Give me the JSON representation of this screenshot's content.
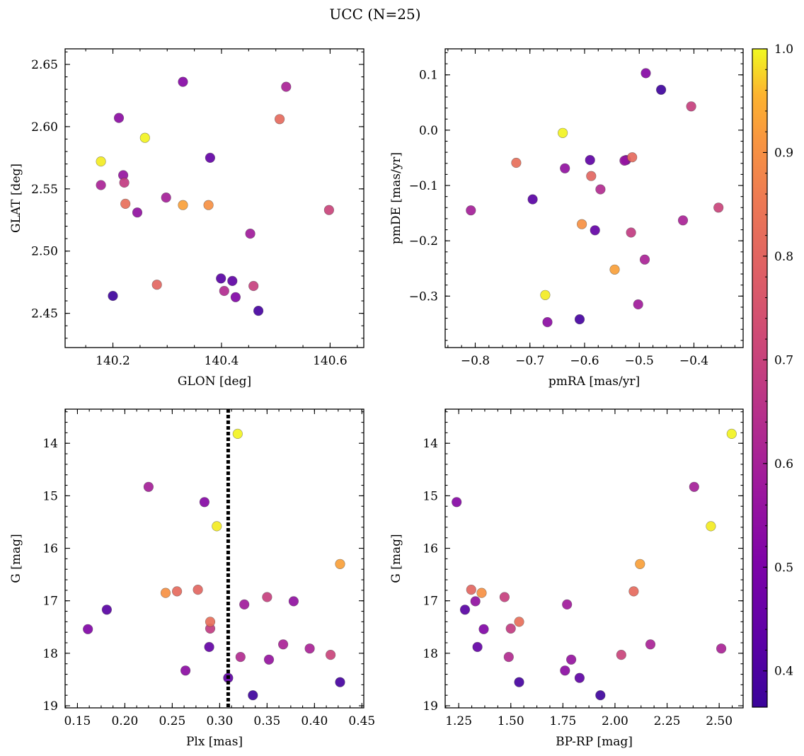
{
  "chart_data": {
    "title": "UCC (N=25)",
    "colorbar": {
      "colormap": "plasma",
      "range": [
        0.365,
        1.0
      ],
      "ticks": [
        0.4,
        0.5,
        0.6,
        0.7,
        0.8,
        0.9,
        1.0
      ],
      "tick_labels": [
        "0.4",
        "0.5",
        "0.6",
        "0.7",
        "0.8",
        "0.9",
        "1.0"
      ]
    },
    "vline_plx": 0.309,
    "stars": [
      {
        "glon": 140.178,
        "glat": 2.572,
        "pmra": -0.672,
        "pmde": -0.298,
        "plx": 0.297,
        "g": 15.58,
        "bprp": 2.46,
        "p": 0.98
      },
      {
        "glon": 140.259,
        "glat": 2.591,
        "pmra": -0.64,
        "pmde": -0.005,
        "plx": 0.319,
        "g": 13.82,
        "bprp": 2.56,
        "p": 0.99
      },
      {
        "glon": 140.329,
        "glat": 2.537,
        "pmra": -0.545,
        "pmde": -0.252,
        "plx": 0.427,
        "g": 16.3,
        "bprp": 2.12,
        "p": 0.85
      },
      {
        "glon": 140.376,
        "glat": 2.537,
        "pmra": -0.605,
        "pmde": -0.17,
        "plx": 0.243,
        "g": 16.85,
        "bprp": 1.36,
        "p": 0.82
      },
      {
        "glon": 140.507,
        "glat": 2.606,
        "pmra": -0.513,
        "pmde": -0.049,
        "plx": 0.255,
        "g": 16.82,
        "bprp": 2.09,
        "p": 0.74
      },
      {
        "glon": 140.223,
        "glat": 2.538,
        "pmra": -0.725,
        "pmde": -0.059,
        "plx": 0.29,
        "g": 17.4,
        "bprp": 1.54,
        "p": 0.75
      },
      {
        "glon": 140.281,
        "glat": 2.473,
        "pmra": -0.588,
        "pmde": -0.083,
        "plx": 0.277,
        "g": 16.79,
        "bprp": 1.31,
        "p": 0.73
      },
      {
        "glon": 140.598,
        "glat": 2.533,
        "pmra": -0.355,
        "pmde": -0.14,
        "plx": 0.417,
        "g": 18.03,
        "bprp": 2.03,
        "p": 0.65
      },
      {
        "glon": 140.459,
        "glat": 2.472,
        "pmra": -0.405,
        "pmde": 0.043,
        "plx": 0.35,
        "g": 16.93,
        "bprp": 1.47,
        "p": 0.64
      },
      {
        "glon": 140.221,
        "glat": 2.555,
        "pmra": -0.515,
        "pmde": -0.185,
        "plx": 0.29,
        "g": 17.53,
        "bprp": 1.5,
        "p": 0.63
      },
      {
        "glon": 140.405,
        "glat": 2.468,
        "pmra": -0.571,
        "pmde": -0.107,
        "plx": 0.322,
        "g": 18.07,
        "bprp": 1.49,
        "p": 0.59
      },
      {
        "glon": 140.178,
        "glat": 2.553,
        "pmra": -0.42,
        "pmde": -0.163,
        "plx": 0.395,
        "g": 17.91,
        "bprp": 2.51,
        "p": 0.57
      },
      {
        "glon": 140.519,
        "glat": 2.632,
        "pmra": -0.49,
        "pmde": -0.234,
        "plx": 0.367,
        "g": 17.83,
        "bprp": 2.17,
        "p": 0.57
      },
      {
        "glon": 140.298,
        "glat": 2.543,
        "pmra": -0.808,
        "pmde": -0.145,
        "plx": 0.225,
        "g": 14.83,
        "bprp": 2.38,
        "p": 0.56
      },
      {
        "glon": 140.453,
        "glat": 2.514,
        "pmra": -0.502,
        "pmde": -0.315,
        "plx": 0.326,
        "g": 17.07,
        "bprp": 1.77,
        "p": 0.55
      },
      {
        "glon": 140.219,
        "glat": 2.561,
        "pmra": -0.527,
        "pmde": -0.055,
        "plx": 0.352,
        "g": 18.12,
        "bprp": 1.79,
        "p": 0.53
      },
      {
        "glon": 140.245,
        "glat": 2.531,
        "pmra": -0.636,
        "pmde": -0.069,
        "plx": 0.378,
        "g": 17.01,
        "bprp": 1.33,
        "p": 0.52
      },
      {
        "glon": 140.211,
        "glat": 2.607,
        "pmra": -0.668,
        "pmde": -0.347,
        "plx": 0.264,
        "g": 18.33,
        "bprp": 1.76,
        "p": 0.51
      },
      {
        "glon": 140.329,
        "glat": 2.636,
        "pmra": -0.488,
        "pmde": 0.103,
        "plx": 0.284,
        "g": 15.12,
        "bprp": 1.24,
        "p": 0.5
      },
      {
        "glon": 140.426,
        "glat": 2.463,
        "pmra": -0.524,
        "pmde": -0.054,
        "plx": 0.161,
        "g": 17.54,
        "bprp": 1.37,
        "p": 0.49
      },
      {
        "glon": 140.379,
        "glat": 2.575,
        "pmra": -0.581,
        "pmde": -0.181,
        "plx": 0.289,
        "g": 17.88,
        "bprp": 1.34,
        "p": 0.44
      },
      {
        "glon": 140.42,
        "glat": 2.476,
        "pmra": -0.59,
        "pmde": -0.054,
        "plx": 0.309,
        "g": 18.47,
        "bprp": 1.83,
        "p": 0.43
      },
      {
        "glon": 140.399,
        "glat": 2.478,
        "pmra": -0.695,
        "pmde": -0.125,
        "plx": 0.181,
        "g": 17.17,
        "bprp": 1.28,
        "p": 0.42
      },
      {
        "glon": 140.468,
        "glat": 2.452,
        "pmra": -0.609,
        "pmde": -0.342,
        "plx": 0.427,
        "g": 18.55,
        "bprp": 1.54,
        "p": 0.39
      },
      {
        "glon": 140.2,
        "glat": 2.464,
        "pmra": -0.46,
        "pmde": 0.073,
        "plx": 0.335,
        "g": 18.8,
        "bprp": 1.93,
        "p": 0.38
      }
    ],
    "panels": [
      {
        "id": "glon-glat",
        "type": "scatter",
        "xkey": "glon",
        "ykey": "glat",
        "xlabel": "GLON [deg]",
        "ylabel": "GLAT [deg]",
        "xlim": [
          140.112,
          140.662
        ],
        "ylim": [
          2.4225,
          2.6625
        ],
        "y_inverted": false,
        "xticks": [
          140.2,
          140.4,
          140.6
        ],
        "xtick_labels": [
          "140.2",
          "140.4",
          "140.6"
        ],
        "yticks": [
          2.45,
          2.5,
          2.55,
          2.6,
          2.65
        ],
        "ytick_labels": [
          "2.45",
          "2.50",
          "2.55",
          "2.60",
          "2.65"
        ]
      },
      {
        "id": "pmra-pmde",
        "type": "scatter",
        "xkey": "pmra",
        "ykey": "pmde",
        "xlabel": "pmRA [mas/yr]",
        "ylabel": "pmDE [mas/yr]",
        "xlim": [
          -0.855,
          -0.31
        ],
        "ylim": [
          -0.393,
          0.147
        ],
        "y_inverted": false,
        "xticks": [
          -0.8,
          -0.7,
          -0.6,
          -0.5,
          -0.4
        ],
        "xtick_labels": [
          "−0.8",
          "−0.7",
          "−0.6",
          "−0.5",
          "−0.4"
        ],
        "yticks": [
          -0.3,
          -0.2,
          -0.1,
          0.0,
          0.1
        ],
        "ytick_labels": [
          "−0.3",
          "−0.2",
          "−0.1",
          "0.0",
          "0.1"
        ]
      },
      {
        "id": "plx-g",
        "type": "scatter",
        "xkey": "plx",
        "ykey": "g",
        "xlabel": "Plx [mas]",
        "ylabel": "G [mag]",
        "xlim": [
          0.137,
          0.452
        ],
        "ylim": [
          19.04,
          13.35
        ],
        "y_inverted": true,
        "xticks": [
          0.15,
          0.2,
          0.25,
          0.3,
          0.35,
          0.4,
          0.45
        ],
        "xtick_labels": [
          "0.15",
          "0.20",
          "0.25",
          "0.30",
          "0.35",
          "0.40",
          "0.45"
        ],
        "yticks": [
          14,
          15,
          16,
          17,
          18,
          19
        ],
        "ytick_labels": [
          "14",
          "15",
          "16",
          "17",
          "18",
          "19"
        ]
      },
      {
        "id": "bprp-g",
        "type": "scatter",
        "xkey": "bprp",
        "ykey": "g",
        "xlabel": "BP-RP [mag]",
        "ylabel": "G [mag]",
        "xlim": [
          1.185,
          2.615
        ],
        "ylim": [
          19.04,
          13.35
        ],
        "y_inverted": true,
        "xticks": [
          1.25,
          1.5,
          1.75,
          2.0,
          2.25,
          2.5
        ],
        "xtick_labels": [
          "1.25",
          "1.50",
          "1.75",
          "2.00",
          "2.25",
          "2.50"
        ],
        "yticks": [
          14,
          15,
          16,
          17,
          18,
          19
        ],
        "ytick_labels": [
          "14",
          "15",
          "16",
          "17",
          "18",
          "19"
        ]
      }
    ]
  }
}
